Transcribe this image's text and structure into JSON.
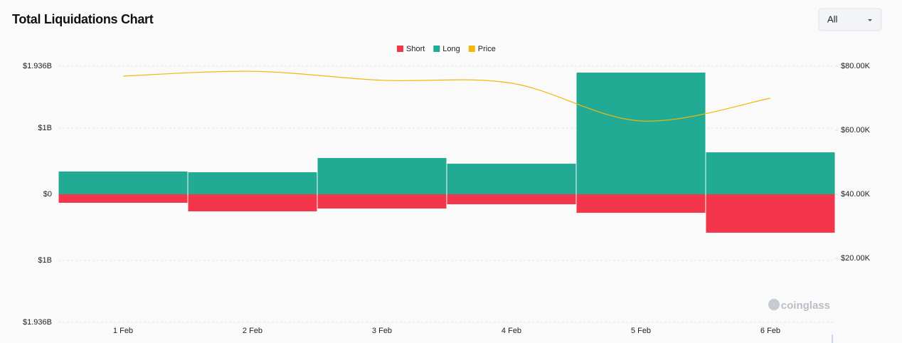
{
  "chart_data": {
    "type": "bar",
    "title": "Total Liquidations Chart",
    "range_select": "All",
    "watermark": "coinglass",
    "categories": [
      "1 Feb",
      "2 Feb",
      "3 Feb",
      "4 Feb",
      "5 Feb",
      "6 Feb"
    ],
    "series": [
      {
        "name": "Short",
        "color": "#f4364c",
        "values": [
          -129000000,
          -258000000,
          -215000000,
          -151000000,
          -280000000,
          -581000000
        ]
      },
      {
        "name": "Long",
        "color": "#22ab94",
        "values": [
          344000000,
          333000000,
          548000000,
          462000000,
          1839000000,
          634000000
        ]
      },
      {
        "name": "Price",
        "color": "#f0b90b",
        "axis": "y2",
        "type": "line",
        "values": [
          76900,
          78400,
          75600,
          74700,
          62900,
          70000
        ]
      }
    ],
    "ylim": [
      -1936000000,
      1936000000
    ],
    "yticks": [
      {
        "value": 1936000000,
        "label": "$1.936B"
      },
      {
        "value": 1000000000,
        "label": "$1B"
      },
      {
        "value": 0,
        "label": "$0"
      },
      {
        "value": -1000000000,
        "label": "$1B"
      },
      {
        "value": -1936000000,
        "label": "$1.936B"
      }
    ],
    "y2lim": [
      0,
      80000
    ],
    "y2ticks": [
      {
        "value": 20000,
        "label": "$20.00K"
      },
      {
        "value": 40000,
        "label": "$40.00K"
      },
      {
        "value": 60000,
        "label": "$60.00K"
      },
      {
        "value": 80000,
        "label": "$80.00K"
      }
    ],
    "grid": true,
    "legend": "top"
  }
}
